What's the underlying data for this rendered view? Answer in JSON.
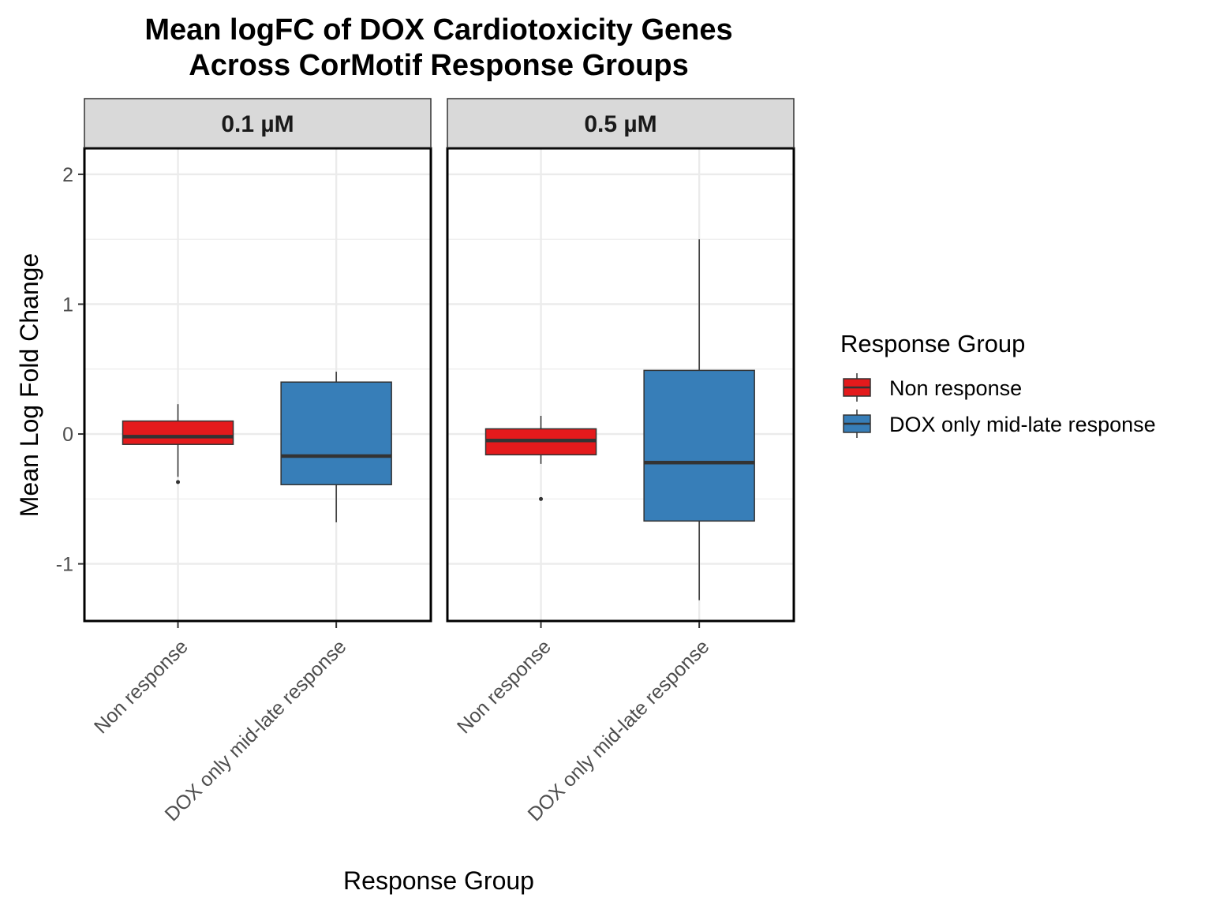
{
  "chart_data": {
    "type": "box",
    "title_lines": [
      "Mean logFC of DOX Cardiotoxicity Genes",
      "Across CorMotif Response Groups"
    ],
    "xlabel": "Response Group",
    "ylabel": "Mean Log Fold Change",
    "ylim": [
      -1.44,
      2.2
    ],
    "y_ticks": [
      -1,
      0,
      1,
      2
    ],
    "y_tick_labels": [
      "-1",
      "0",
      "1",
      "2"
    ],
    "grid": true,
    "legend_position": "right",
    "legend_title": "Response Group",
    "categories": [
      "Non response",
      "DOX only mid-late response"
    ],
    "series_colors": {
      "Non response": "#E41A1C",
      "DOX only mid-late response": "#377EB8"
    },
    "facets": [
      {
        "label": "0.1 µM",
        "boxes": [
          {
            "group": "Non response",
            "q1": -0.08,
            "median": -0.02,
            "q3": 0.1,
            "whisker_low": -0.33,
            "whisker_high": 0.23,
            "outliers": [
              -0.37
            ]
          },
          {
            "group": "DOX only mid-late response",
            "q1": -0.39,
            "median": -0.17,
            "q3": 0.4,
            "whisker_low": -0.68,
            "whisker_high": 0.48,
            "outliers": []
          }
        ]
      },
      {
        "label": "0.5 µM",
        "boxes": [
          {
            "group": "Non response",
            "q1": -0.16,
            "median": -0.05,
            "q3": 0.04,
            "whisker_low": -0.23,
            "whisker_high": 0.14,
            "outliers": [
              -0.5
            ]
          },
          {
            "group": "DOX only mid-late response",
            "q1": -0.67,
            "median": -0.22,
            "q3": 0.49,
            "whisker_low": -1.28,
            "whisker_high": 1.5,
            "outliers": []
          }
        ]
      }
    ]
  },
  "colors": {
    "strip_fill": "#D9D9D9",
    "grid": "#EBEBEB",
    "box_line": "#333333"
  }
}
